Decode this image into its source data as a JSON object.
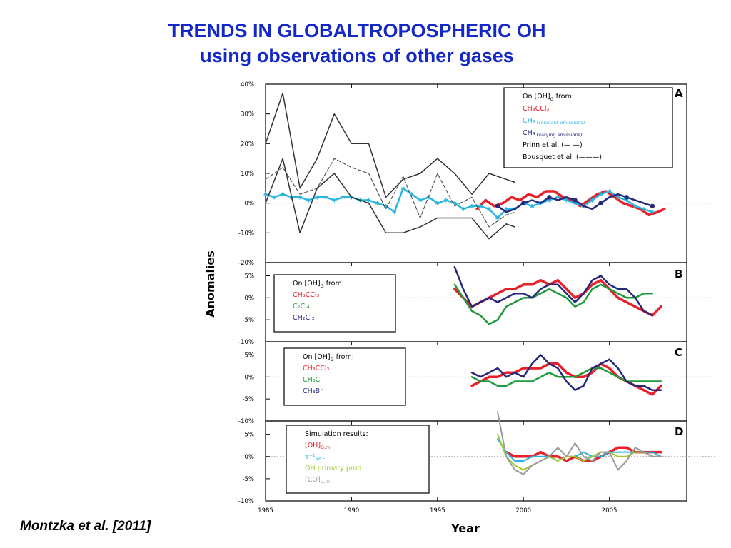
{
  "title": {
    "line1": "TRENDS IN GLOBALTROPOSPHERIC OH",
    "line2": "using observations of other gases"
  },
  "citation": "Montzka et al. [2011]",
  "colors": {
    "title": "#1428c8",
    "red": "#e8202a",
    "cyan": "#2ab4e0",
    "navy": "#26287a",
    "green": "#1e9a3c",
    "lime": "#9ccb2e",
    "gray": "#9a9a9a",
    "prinn": "#555555",
    "bousquet": "#333333"
  },
  "chart_data": [
    {
      "type": "line",
      "panel": "A",
      "ylabel": "Anomalies",
      "xlabel": "Year",
      "xlim": [
        1985,
        2009.5
      ],
      "ylim": [
        -20,
        40
      ],
      "yticks": [
        "40%",
        "30%",
        "20%",
        "10%",
        "0%",
        "-10%",
        "-20%"
      ],
      "ytick_values": [
        40,
        30,
        20,
        10,
        0,
        -10,
        -20
      ],
      "legend_position": "top-right",
      "legend_title": "On [OH]",
      "legend_title_sub": "G",
      "legend_title_tail": " from:",
      "series": [
        {
          "name": "CH3CCl3",
          "legend": "CH₃CCl₃",
          "legend_sub": "",
          "color": "red",
          "width": 3.5,
          "x": [
            1997.3,
            1997.8,
            1998.3,
            1998.8,
            1999.3,
            1999.8,
            2000.3,
            2000.8,
            2001.3,
            2001.8,
            2002.3,
            2002.8,
            2003.3,
            2003.8,
            2004.3,
            2004.8,
            2005.3,
            2005.8,
            2006.3,
            2006.8,
            2007.3,
            2007.8,
            2008.2
          ],
          "y": [
            -2,
            1,
            -1,
            0,
            2,
            1,
            3,
            2,
            4,
            4,
            2,
            1,
            -1,
            1,
            3,
            4,
            2,
            0,
            -1,
            -2,
            -4,
            -3,
            -2
          ]
        },
        {
          "name": "CH4 (constant emissions)",
          "legend": "CH₄",
          "legend_sub": " (constant emissions)",
          "color": "cyan",
          "width": 2.5,
          "marker": "star",
          "x": [
            1985,
            1985.5,
            1986,
            1986.5,
            1987,
            1987.5,
            1988,
            1988.5,
            1989,
            1989.5,
            1990,
            1990.5,
            1991,
            1991.5,
            1992,
            1992.5,
            1993,
            1993.5,
            1994,
            1994.5,
            1995,
            1995.5,
            1996,
            1996.5,
            1997,
            1997.5,
            1998,
            1998.5,
            1999,
            1999.5,
            2000,
            2000.5,
            2001,
            2001.5,
            2002,
            2002.5,
            2003,
            2003.5,
            2004,
            2004.5,
            2005,
            2005.5,
            2006,
            2006.5,
            2007,
            2007.5
          ],
          "y": [
            3,
            2,
            3,
            2,
            2,
            1,
            2,
            2,
            1,
            2,
            2,
            1,
            1,
            0,
            -1,
            -3,
            5,
            3,
            1,
            2,
            0,
            1,
            0,
            -2,
            -1,
            -1,
            -2,
            -5,
            -2,
            -2,
            0,
            -1,
            0,
            1,
            2,
            1,
            0,
            -1,
            1,
            3,
            4,
            2,
            1,
            -1,
            -2,
            -3
          ]
        },
        {
          "name": "CH4 (varying emissions)",
          "legend": "CH₄",
          "legend_sub": " (varying emissions)",
          "color": "navy",
          "width": 2.5,
          "marker": "dot",
          "x": [
            1998.5,
            1999,
            1999.5,
            2000,
            2000.5,
            2001,
            2001.5,
            2002,
            2002.5,
            2003,
            2003.5,
            2004,
            2004.5,
            2005,
            2005.5,
            2006,
            2006.5,
            2007,
            2007.5
          ],
          "y": [
            -1,
            -3,
            -2,
            0,
            1,
            0,
            2,
            1,
            2,
            1,
            -1,
            -2,
            0,
            2,
            3,
            2,
            1,
            0,
            -1
          ]
        },
        {
          "name": "Prinn et al.",
          "legend": "Prinn et al. (— —)",
          "legend_sub": "",
          "color": "prinn",
          "width": 1.2,
          "dash": "5,3",
          "x": [
            1985,
            1986,
            1987,
            1988,
            1989,
            1990,
            1991,
            1992,
            1993,
            1994,
            1995,
            1996,
            1997,
            1998,
            1999,
            1999.5
          ],
          "y": [
            8,
            12,
            3,
            5,
            15,
            12,
            10,
            -2,
            9,
            -5,
            10,
            -1,
            2,
            -8,
            -4,
            -3
          ]
        },
        {
          "name": "Bousquet et al. upper bound",
          "legend": "Bousquet et al. (———)",
          "legend_sub": "",
          "color": "bousquet",
          "width": 1.5,
          "x": [
            1985,
            1986,
            1987,
            1988,
            1989,
            1990,
            1991,
            1992,
            1993,
            1994,
            1995,
            1996,
            1997,
            1998,
            1999,
            1999.5
          ],
          "y": [
            20,
            37,
            5,
            15,
            30,
            20,
            20,
            2,
            8,
            10,
            15,
            10,
            3,
            10,
            8,
            7
          ]
        },
        {
          "name": "Bousquet et al. lower bound",
          "legend": "",
          "legend_sub": "",
          "color": "bousquet",
          "width": 1.5,
          "x": [
            1985,
            1986,
            1987,
            1988,
            1989,
            1990,
            1991,
            1992,
            1993,
            1994,
            1995,
            1996,
            1997,
            1998,
            1999,
            1999.5
          ],
          "y": [
            0,
            15,
            -10,
            5,
            10,
            2,
            0,
            -10,
            -10,
            -8,
            -5,
            -5,
            -5,
            -12,
            -7,
            -8
          ]
        }
      ]
    },
    {
      "type": "line",
      "panel": "B",
      "ylim": [
        -10,
        8
      ],
      "yticks": [
        "5%",
        "0%",
        "-5%",
        "-10%"
      ],
      "ytick_values": [
        5,
        0,
        -5,
        -10
      ],
      "legend_position": "top-left",
      "legend_title": "On [OH]",
      "legend_title_sub": "G",
      "legend_title_tail": " from:",
      "series": [
        {
          "name": "CH3CCl3",
          "legend": "CH₃CCl₃",
          "legend_sub": "",
          "color": "red",
          "width": 3.5,
          "x": [
            1996,
            1996.5,
            1997,
            1997.5,
            1998,
            1998.5,
            1999,
            1999.5,
            2000,
            2000.5,
            2001,
            2001.5,
            2002,
            2002.5,
            2003,
            2003.5,
            2004,
            2004.5,
            2005,
            2005.5,
            2006,
            2006.5,
            2007,
            2007.5,
            2008
          ],
          "y": [
            2,
            0,
            -2,
            -1,
            0,
            1,
            2,
            2,
            3,
            3,
            4,
            3,
            4,
            2,
            0,
            1,
            3,
            4,
            2,
            0,
            -1,
            -2,
            -3,
            -4,
            -2
          ]
        },
        {
          "name": "C2Cl4",
          "legend": "C₂Cl₄",
          "legend_sub": "",
          "color": "green",
          "width": 2.5,
          "x": [
            1996,
            1996.5,
            1997,
            1997.5,
            1998,
            1998.5,
            1999,
            1999.5,
            2000,
            2000.5,
            2001,
            2001.5,
            2002,
            2002.5,
            2003,
            2003.5,
            2004,
            2004.5,
            2005,
            2005.5,
            2006,
            2006.5,
            2007,
            2007.5
          ],
          "y": [
            3,
            0,
            -3,
            -4,
            -6,
            -5,
            -2,
            -1,
            0,
            0,
            1,
            2,
            1,
            0,
            -2,
            -1,
            2,
            3,
            2,
            1,
            0,
            0,
            1,
            1
          ]
        },
        {
          "name": "CH2Cl2",
          "legend": "CH₂Cl₂",
          "legend_sub": "",
          "color": "navy",
          "width": 2.5,
          "x": [
            1996,
            1996.5,
            1997,
            1997.5,
            1998,
            1998.5,
            1999,
            1999.5,
            2000,
            2000.5,
            2001,
            2001.5,
            2002,
            2002.5,
            2003,
            2003.5,
            2004,
            2004.5,
            2005,
            2005.5,
            2006,
            2006.5,
            2007,
            2007.5
          ],
          "y": [
            7,
            2,
            -2,
            -1,
            0,
            -1,
            0,
            1,
            1,
            0,
            2,
            3,
            3,
            1,
            -1,
            1,
            4,
            5,
            3,
            2,
            2,
            0,
            -3,
            -4
          ]
        }
      ]
    },
    {
      "type": "line",
      "panel": "C",
      "ylim": [
        -10,
        8
      ],
      "yticks": [
        "5%",
        "0%",
        "-5%",
        "-10%"
      ],
      "ytick_values": [
        5,
        0,
        -5,
        -10
      ],
      "legend_position": "top-left",
      "legend_title": "On [OH]",
      "legend_title_sub": "G",
      "legend_title_tail": " from:",
      "series": [
        {
          "name": "CH3CCl3",
          "legend": "CH₃CCl₃",
          "legend_sub": "",
          "color": "red",
          "width": 3.5,
          "x": [
            1997,
            1997.5,
            1998,
            1998.5,
            1999,
            1999.5,
            2000,
            2000.5,
            2001,
            2001.5,
            2002,
            2002.5,
            2003,
            2003.5,
            2004,
            2004.5,
            2005,
            2005.5,
            2006,
            2006.5,
            2007,
            2007.5,
            2008
          ],
          "y": [
            -2,
            -1,
            0,
            0,
            1,
            1,
            2,
            2,
            2,
            3,
            3,
            1,
            0,
            0,
            1,
            3,
            2,
            0,
            -1,
            -2,
            -3,
            -4,
            -2
          ]
        },
        {
          "name": "CH3Cl",
          "legend": "CH₃Cl",
          "legend_sub": "",
          "color": "green",
          "width": 2.5,
          "x": [
            1997,
            1997.5,
            1998,
            1998.5,
            1999,
            1999.5,
            2000,
            2000.5,
            2001,
            2001.5,
            2002,
            2002.5,
            2003,
            2003.5,
            2004,
            2004.5,
            2005,
            2005.5,
            2006,
            2006.5,
            2007,
            2007.5,
            2008
          ],
          "y": [
            0,
            -1,
            -1,
            -2,
            -2,
            -1,
            -1,
            -1,
            0,
            1,
            0,
            0,
            0,
            1,
            2,
            2,
            1,
            0,
            -1,
            -1,
            -1,
            -1,
            -1
          ]
        },
        {
          "name": "CH3Br",
          "legend": "CH₃Br",
          "legend_sub": "",
          "color": "navy",
          "width": 2.5,
          "x": [
            1997,
            1997.5,
            1998,
            1998.5,
            1999,
            1999.5,
            2000,
            2000.5,
            2001,
            2001.5,
            2002,
            2002.5,
            2003,
            2003.5,
            2004,
            2004.5,
            2005,
            2005.5,
            2006,
            2006.5,
            2007,
            2007.5,
            2008
          ],
          "y": [
            1,
            0,
            1,
            2,
            0,
            1,
            0,
            3,
            5,
            3,
            2,
            -1,
            -3,
            -2,
            2,
            3,
            4,
            2,
            -1,
            -2,
            -2,
            -3,
            -3
          ]
        }
      ]
    },
    {
      "type": "line",
      "panel": "D",
      "xlabel": "Year",
      "xlim": [
        1985,
        2009.5
      ],
      "xticks": [
        "1985",
        "1990",
        "1995",
        "2000",
        "2005"
      ],
      "xtick_values": [
        1985,
        1990,
        1995,
        2000,
        2005
      ],
      "ylim": [
        -10,
        8
      ],
      "yticks": [
        "5%",
        "0%",
        "-5%",
        "-10%"
      ],
      "ytick_values": [
        5,
        0,
        -5,
        -10
      ],
      "legend_position": "top-left",
      "legend_title": "Simulation results:",
      "legend_title_sub": "",
      "legend_title_tail": "",
      "series": [
        {
          "name": "[OH]G,m",
          "legend": "[OH]",
          "legend_sub": "G,m",
          "color": "red",
          "width": 3.5,
          "x": [
            1999,
            1999.5,
            2000,
            2000.5,
            2001,
            2001.5,
            2002,
            2002.5,
            2003,
            2003.5,
            2004,
            2004.5,
            2005,
            2005.5,
            2006,
            2006.5,
            2007,
            2007.5,
            2008
          ],
          "y": [
            1,
            0,
            0,
            0,
            1,
            0,
            0,
            -1,
            0,
            -1,
            -1,
            0,
            1,
            2,
            2,
            1,
            1,
            1,
            1
          ]
        },
        {
          "name": "tau-1 MCF",
          "legend": "τ⁻¹",
          "legend_sub": "MCF",
          "color": "cyan",
          "width": 2,
          "x": [
            1998.5,
            1999,
            1999.5,
            2000,
            2000.5,
            2001,
            2001.5,
            2002,
            2002.5,
            2003,
            2003.5,
            2004,
            2004.5,
            2005,
            2005.5,
            2006,
            2006.5,
            2007,
            2007.5,
            2008
          ],
          "y": [
            4,
            1,
            -1,
            -1,
            0,
            0,
            0,
            -1,
            0,
            0,
            1,
            0,
            0,
            1,
            1,
            1,
            1,
            1,
            1,
            0
          ]
        },
        {
          "name": "OH primary prod.",
          "legend": "OH primary prod.",
          "legend_sub": "",
          "color": "lime",
          "width": 2,
          "x": [
            1998.5,
            1999,
            1999.5,
            2000,
            2000.5,
            2001,
            2001.5,
            2002,
            2002.5,
            2003,
            2003.5,
            2004,
            2004.5,
            2005,
            2005.5,
            2006,
            2006.5,
            2007,
            2007.5,
            2008
          ],
          "y": [
            5,
            0,
            -2,
            -3,
            -2,
            -1,
            0,
            -1,
            0,
            0,
            -1,
            0,
            1,
            1,
            0,
            0,
            1,
            1,
            0,
            0
          ]
        },
        {
          "name": "[CO]G,m",
          "legend": "[CO]",
          "legend_sub": "G,m",
          "color": "gray",
          "width": 2,
          "x": [
            1998.5,
            1999,
            1999.5,
            2000,
            2000.5,
            2001,
            2001.5,
            2002,
            2002.5,
            2003,
            2003.5,
            2004,
            2004.5,
            2005,
            2005.5,
            2006,
            2006.5,
            2007,
            2007.5,
            2008
          ],
          "y": [
            10,
            0,
            -3,
            -4,
            -2,
            -1,
            0,
            2,
            0,
            3,
            0,
            -1,
            1,
            1,
            -3,
            -1,
            2,
            1,
            0,
            0
          ]
        }
      ]
    }
  ]
}
